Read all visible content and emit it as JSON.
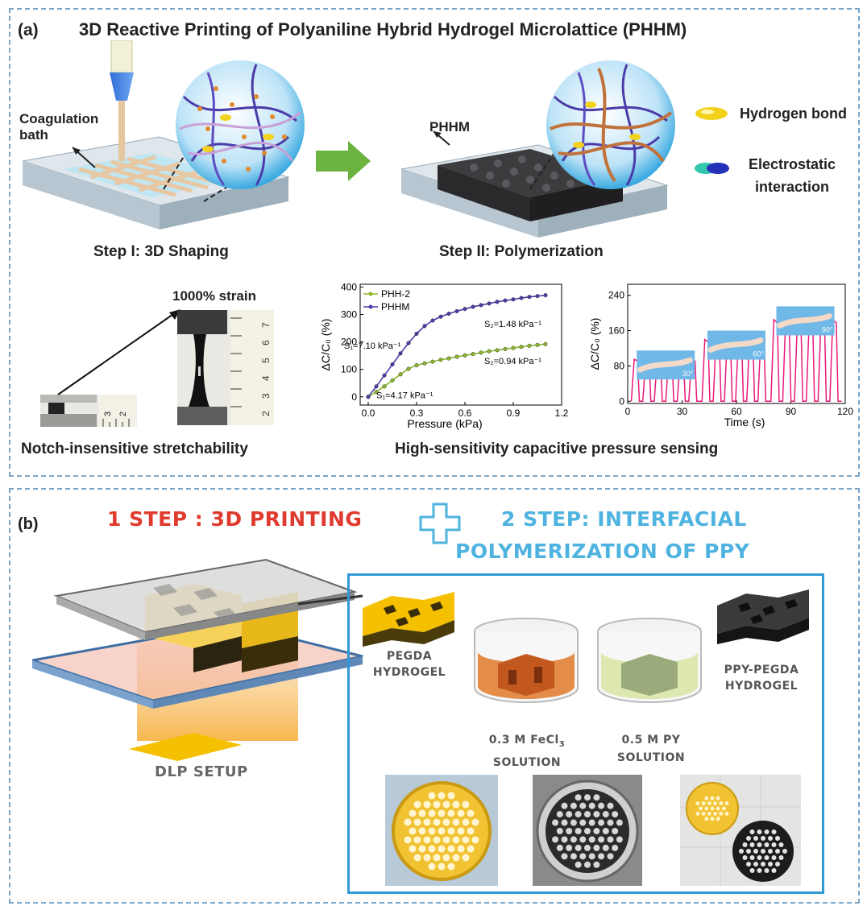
{
  "panel_a": {
    "tag": "(a)",
    "title": "3D Reactive Printing of Polyaniline Hybrid Hydrogel Microlattice (PHHM)",
    "coagulation_label": "Coagulation\nbath",
    "phhm_label": "PHHM",
    "legend": {
      "hbond": "Hydrogen bond",
      "electro": "Electrostatic\ninteraction"
    },
    "step1": "Step I: 3D Shaping",
    "step2": "Step II: Polymerization",
    "strain_label": "1000% strain",
    "notch_caption": "Notch-insensitive stretchability",
    "sensing_caption": "High-sensitivity capacitive pressure sensing",
    "ruler_small": [
      "2",
      "3"
    ],
    "ruler_tall": [
      "7",
      "6",
      "5",
      "4",
      "3",
      "2"
    ]
  },
  "panel_b": {
    "tag": "(b)",
    "step1": "1 STEP : 3D PRINTING",
    "step2_line1": "2 STEP: INTERFACIAL",
    "step2_line2": "POLYMERIZATION OF PPY",
    "dlp": "DLP SETUP",
    "pegda": "PEGDA\nHYDROGEL",
    "fecl3_a": "0.3 M FeCl",
    "fecl3_sub": "3",
    "fecl3_b": "SOLUTION",
    "py_a": "0.5 M PY",
    "py_b": "SOLUTION",
    "ppy": "PPY-PEGDA\nHYDROGEL"
  },
  "colors": {
    "panel_border": "#7aa6c9",
    "step1_red": "#e03a2e",
    "step2_blue": "#4fb3e0",
    "line_purple": "#4b3ba8",
    "line_green": "#8ab82a",
    "pink": "#e8197a"
  },
  "chart_data": [
    {
      "type": "line",
      "xlabel": "Pressure (kPa)",
      "ylabel": "ΔC/C₀ (%)",
      "xlim": [
        -0.05,
        1.2
      ],
      "ylim": [
        -30,
        410
      ],
      "xticks": [
        "0.0",
        "0.3",
        "0.6",
        "0.9",
        "1.2"
      ],
      "yticks": [
        "0",
        "100",
        "200",
        "300",
        "400"
      ],
      "legend": "top-left",
      "series": [
        {
          "name": "PHH-2",
          "color": "#8ab82a",
          "x": [
            0,
            0.05,
            0.1,
            0.15,
            0.2,
            0.25,
            0.3,
            0.35,
            0.4,
            0.45,
            0.5,
            0.55,
            0.6,
            0.65,
            0.7,
            0.75,
            0.8,
            0.85,
            0.9,
            0.95,
            1.0,
            1.05,
            1.1
          ],
          "y": [
            0,
            18,
            38,
            60,
            82,
            102,
            115,
            122,
            128,
            135,
            140,
            146,
            151,
            156,
            161,
            166,
            170,
            174,
            178,
            182,
            186,
            189,
            192
          ]
        },
        {
          "name": "PHHM",
          "color": "#4b3ba8",
          "x": [
            0,
            0.05,
            0.1,
            0.15,
            0.2,
            0.25,
            0.3,
            0.35,
            0.4,
            0.45,
            0.5,
            0.55,
            0.6,
            0.65,
            0.7,
            0.75,
            0.8,
            0.85,
            0.9,
            0.95,
            1.0,
            1.05,
            1.1
          ],
          "y": [
            0,
            38,
            78,
            118,
            158,
            196,
            230,
            258,
            278,
            292,
            303,
            312,
            320,
            328,
            334,
            340,
            346,
            351,
            355,
            360,
            364,
            367,
            370
          ]
        }
      ],
      "annotations": [
        "S₁=7.10 kPa⁻¹",
        "S₂=1.48 kPa⁻¹",
        "S₂=0.94 kPa⁻¹",
        "S₁=4.17 kPa⁻¹"
      ]
    },
    {
      "type": "line",
      "xlabel": "Time (s)",
      "ylabel": "ΔC/C₀ (%)",
      "xlim": [
        0,
        120
      ],
      "ylim": [
        -5,
        265
      ],
      "xticks": [
        "0",
        "30",
        "60",
        "90",
        "120"
      ],
      "yticks": [
        "0",
        "80",
        "160",
        "240"
      ],
      "angles": [
        "30°",
        "60°",
        "90°"
      ],
      "series": [
        {
          "name": "",
          "color": "#e8197a",
          "cycles": [
            {
              "start": 2,
              "end": 40,
              "peaks": 6,
              "peak": 95
            },
            {
              "start": 41,
              "end": 78,
              "peaks": 6,
              "peak": 140
            },
            {
              "start": 79,
              "end": 118,
              "peaks": 6,
              "peak": 185
            }
          ]
        }
      ]
    }
  ]
}
